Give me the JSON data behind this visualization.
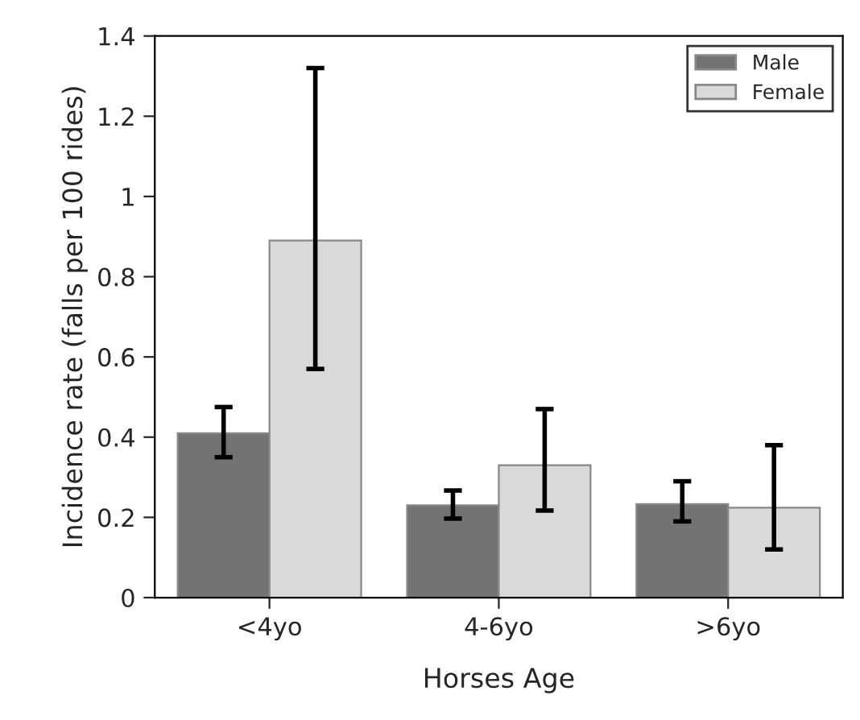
{
  "chart_data": {
    "type": "bar",
    "xlabel": "Horses Age",
    "ylabel": "Incidence rate (falls per 100 rides)",
    "categories": [
      "<4yo",
      "4-6yo",
      ">6yo"
    ],
    "series": [
      {
        "name": "Male",
        "color": "#737373",
        "values": [
          0.41,
          0.23,
          0.233
        ],
        "errors": [
          [
            0.35,
            0.475
          ],
          [
            0.197,
            0.267
          ],
          [
            0.19,
            0.29
          ]
        ]
      },
      {
        "name": "Female",
        "color": "#d9d9d9",
        "values": [
          0.89,
          0.33,
          0.224
        ],
        "errors": [
          [
            0.57,
            1.32
          ],
          [
            0.217,
            0.47
          ],
          [
            0.12,
            0.38
          ]
        ]
      }
    ],
    "ylim": [
      0,
      1.4
    ],
    "yticks": [
      0,
      0.2,
      0.4,
      0.6,
      0.8,
      1,
      1.2,
      1.4
    ],
    "grid": false,
    "legend": "top right"
  }
}
